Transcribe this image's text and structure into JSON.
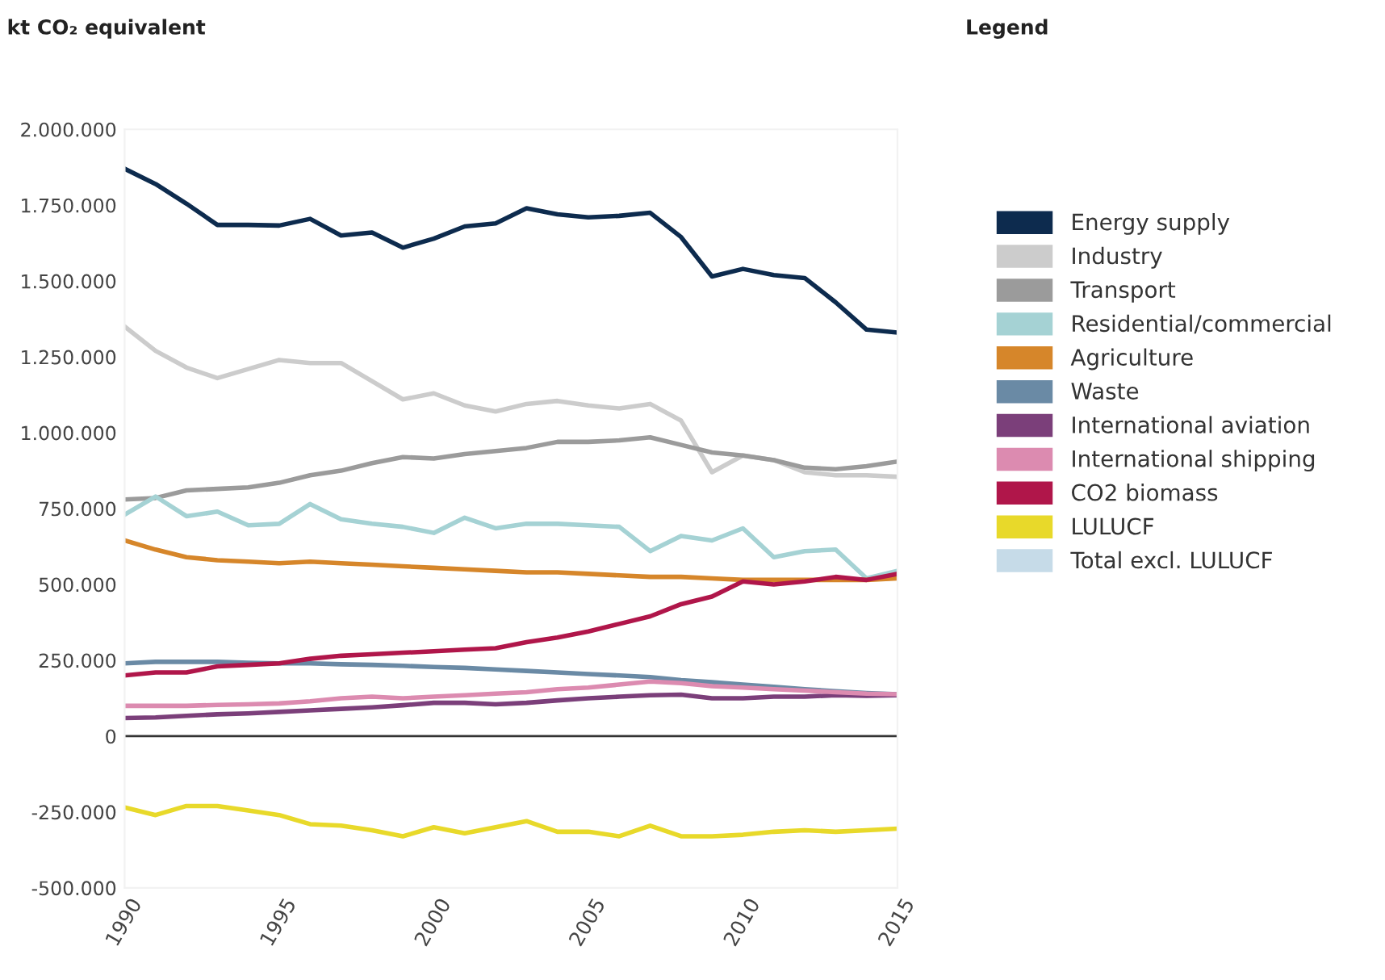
{
  "chart_data": {
    "type": "line",
    "ylabel": "kt CO₂ equivalent",
    "legend_title": "Legend",
    "legend": "right",
    "grid": false,
    "x": [
      1990,
      1991,
      1992,
      1993,
      1994,
      1995,
      1996,
      1997,
      1998,
      1999,
      2000,
      2001,
      2002,
      2003,
      2004,
      2005,
      2006,
      2007,
      2008,
      2009,
      2010,
      2011,
      2012,
      2013,
      2014,
      2015
    ],
    "xlim": [
      1990,
      2015
    ],
    "xticks": [
      1990,
      1995,
      2000,
      2005,
      2010,
      2015
    ],
    "ylim": [
      -500000,
      2000000
    ],
    "yticks": [
      {
        "value": -500000,
        "label": "-500.000"
      },
      {
        "value": -250000,
        "label": "-250.000"
      },
      0,
      {
        "value": 250000,
        "label": "250.000"
      },
      {
        "value": 500000,
        "label": "500.000"
      },
      {
        "value": 750000,
        "label": "750.000"
      },
      {
        "value": 1000000,
        "label": "1.000.000"
      },
      {
        "value": 1250000,
        "label": "1.250.000"
      },
      {
        "value": 1500000,
        "label": "1.500.000"
      },
      {
        "value": 1750000,
        "label": "1.750.000"
      },
      {
        "value": 2000000,
        "label": "2.000.000"
      }
    ],
    "ref_lines": [
      {
        "axis": "y",
        "value": 0,
        "color": "#333333"
      }
    ],
    "series": [
      {
        "name": "Energy supply",
        "color": "#0d2b4e",
        "values": [
          1870000,
          1820000,
          1755000,
          1685000,
          1685000,
          1683000,
          1705000,
          1650000,
          1660000,
          1610000,
          1640000,
          1680000,
          1690000,
          1740000,
          1720000,
          1710000,
          1715000,
          1725000,
          1645000,
          1515000,
          1540000,
          1520000,
          1510000,
          1430000,
          1340000,
          1330000
        ]
      },
      {
        "name": "Industry",
        "color": "#cccccc",
        "values": [
          1350000,
          1270000,
          1215000,
          1180000,
          1210000,
          1240000,
          1230000,
          1230000,
          1170000,
          1110000,
          1130000,
          1090000,
          1070000,
          1095000,
          1105000,
          1090000,
          1080000,
          1095000,
          1040000,
          870000,
          925000,
          910000,
          870000,
          860000,
          860000,
          855000
        ]
      },
      {
        "name": "Transport",
        "color": "#9b9b9b",
        "values": [
          780000,
          785000,
          810000,
          815000,
          820000,
          835000,
          860000,
          875000,
          900000,
          920000,
          915000,
          930000,
          940000,
          950000,
          970000,
          970000,
          975000,
          985000,
          960000,
          935000,
          925000,
          910000,
          885000,
          880000,
          890000,
          905000
        ]
      },
      {
        "name": "Residential/commercial",
        "color": "#a5d2d4",
        "values": [
          730000,
          790000,
          725000,
          740000,
          695000,
          700000,
          765000,
          715000,
          700000,
          690000,
          670000,
          720000,
          685000,
          700000,
          700000,
          695000,
          690000,
          610000,
          660000,
          645000,
          685000,
          590000,
          610000,
          615000,
          520000,
          545000
        ]
      },
      {
        "name": "Agriculture",
        "color": "#d6862a",
        "values": [
          645000,
          615000,
          590000,
          580000,
          575000,
          570000,
          575000,
          570000,
          565000,
          560000,
          555000,
          550000,
          545000,
          540000,
          540000,
          535000,
          530000,
          525000,
          525000,
          520000,
          515000,
          515000,
          515000,
          515000,
          515000,
          520000
        ]
      },
      {
        "name": "Waste",
        "color": "#6a8aa5",
        "values": [
          240000,
          245000,
          245000,
          245000,
          242000,
          240000,
          240000,
          237000,
          235000,
          232000,
          228000,
          225000,
          220000,
          215000,
          210000,
          205000,
          200000,
          195000,
          185000,
          178000,
          170000,
          163000,
          155000,
          148000,
          142000,
          138000
        ]
      },
      {
        "name": "International aviation",
        "color": "#7b3f7a",
        "values": [
          60000,
          62000,
          67000,
          72000,
          75000,
          80000,
          85000,
          90000,
          95000,
          102000,
          110000,
          110000,
          105000,
          110000,
          118000,
          125000,
          130000,
          135000,
          137000,
          125000,
          125000,
          130000,
          130000,
          135000,
          133000,
          135000
        ]
      },
      {
        "name": "International shipping",
        "color": "#dc8bb0",
        "values": [
          100000,
          100000,
          100000,
          103000,
          105000,
          108000,
          115000,
          125000,
          130000,
          125000,
          130000,
          135000,
          140000,
          145000,
          155000,
          160000,
          170000,
          180000,
          175000,
          165000,
          160000,
          155000,
          150000,
          145000,
          140000,
          138000
        ]
      },
      {
        "name": "CO2 biomass",
        "color": "#b0164a",
        "values": [
          200000,
          210000,
          210000,
          230000,
          235000,
          240000,
          255000,
          265000,
          270000,
          275000,
          280000,
          285000,
          290000,
          310000,
          325000,
          345000,
          370000,
          395000,
          435000,
          460000,
          510000,
          500000,
          510000,
          525000,
          515000,
          535000
        ]
      },
      {
        "name": "LULUCF",
        "color": "#e8d92a",
        "values": [
          -235000,
          -260000,
          -230000,
          -230000,
          -245000,
          -260000,
          -290000,
          -295000,
          -310000,
          -330000,
          -300000,
          -320000,
          -300000,
          -280000,
          -315000,
          -315000,
          -330000,
          -295000,
          -330000,
          -330000,
          -325000,
          -315000,
          -310000,
          -315000,
          -310000,
          -305000
        ]
      },
      {
        "name": "Total excl. LULUCF",
        "color": "#c6dbe8",
        "values": [
          null,
          null,
          null,
          null,
          null,
          null,
          null,
          null,
          null,
          null,
          null,
          null,
          null,
          null,
          null,
          null,
          null,
          null,
          null,
          null,
          null,
          null,
          null,
          null,
          null,
          null
        ]
      }
    ]
  }
}
